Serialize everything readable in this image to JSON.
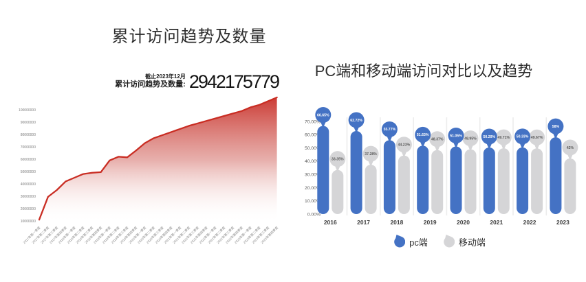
{
  "stat": {
    "caption_date": "截止2023年12月",
    "caption_label": "累计访问趋势及数量:",
    "value": "2942175779"
  },
  "colors": {
    "area_line": "#c92d23",
    "area_fill_top": "#c9312a",
    "pc_blue": "#4472c4",
    "mobile_gray": "#d5d5d7",
    "axis_text": "#595959",
    "tiny_axis_text": "#7d7d7d",
    "separator": "#ececec"
  },
  "chart_data": [
    {
      "type": "area",
      "title": "累计访问趋势及数量",
      "x": [
        "2017年第一季度",
        "2017年第二季度",
        "2017年第三季度",
        "2017年第四季度",
        "2018年第一季度",
        "2018年第二季度",
        "2018年第三季度",
        "2018年第四季度",
        "2019年第一季度",
        "2019年第二季度",
        "2019年第三季度",
        "2019年第四季度",
        "2020年第一季度",
        "2020年第二季度",
        "2020年第三季度",
        "2020年第四季度",
        "2021年第一季度",
        "2021年第二季度",
        "2021年第三季度",
        "2021年第四季度",
        "2022年第一季度",
        "2022年第二季度",
        "2022年第三季度",
        "2022年第四季度",
        "2023年第一季度",
        "2023年第二季度",
        "2023年第三季度",
        "2023年第四季度"
      ],
      "series": [
        {
          "name": "累计访问量",
          "values": [
            11000000,
            29500000,
            35000000,
            42000000,
            45000000,
            48000000,
            49000000,
            49500000,
            59000000,
            62000000,
            61500000,
            67000000,
            73000000,
            77000000,
            79500000,
            82000000,
            84500000,
            87000000,
            89000000,
            91000000,
            93000000,
            95000000,
            97000000,
            99000000,
            102000000,
            104000000,
            107000000,
            110000000
          ]
        }
      ],
      "yticks": [
        100000000,
        90000000,
        80000000,
        70000000,
        60000000,
        50000000,
        40000000,
        30000000,
        20000000,
        10000000
      ],
      "ylim": [
        10000000,
        110000000
      ],
      "grid": false,
      "annotation_date": "截止2023年12月",
      "annotation_value": "2942175779"
    },
    {
      "type": "bar",
      "title": "PC端和移动端访问对比以及趋势",
      "categories": [
        "2016",
        "2017",
        "2018",
        "2019",
        "2020",
        "2021",
        "2022",
        "2023"
      ],
      "series": [
        {
          "name": "pc端",
          "color": "#4472c4",
          "label_text_color": "#ffffff",
          "values": [
            66.65,
            62.72,
            55.77,
            51.63,
            51.05,
            50.29,
            50.33,
            58
          ],
          "labels": [
            "66.65%",
            "62.72%",
            "55.77%",
            "51.63%",
            "51.05%",
            "50.29%",
            "50.33%",
            "58%"
          ]
        },
        {
          "name": "移动端",
          "color": "#d5d5d7",
          "label_text_color": "#595959",
          "values": [
            33.35,
            37.28,
            44.23,
            48.37,
            48.95,
            49.71,
            49.67,
            42
          ],
          "labels": [
            "33.35%",
            "37.28%",
            "44.23%",
            "48.37%",
            "48.95%",
            "49.71%",
            "49.67%",
            "42%"
          ]
        }
      ],
      "yticks": [
        "70.00%",
        "60.00%",
        "50.00%",
        "40.00%",
        "30.00%",
        "20.00%",
        "10.00%",
        "0.00%"
      ],
      "ylim": [
        0,
        70
      ],
      "grid": false,
      "legend_position": "bottom"
    }
  ]
}
